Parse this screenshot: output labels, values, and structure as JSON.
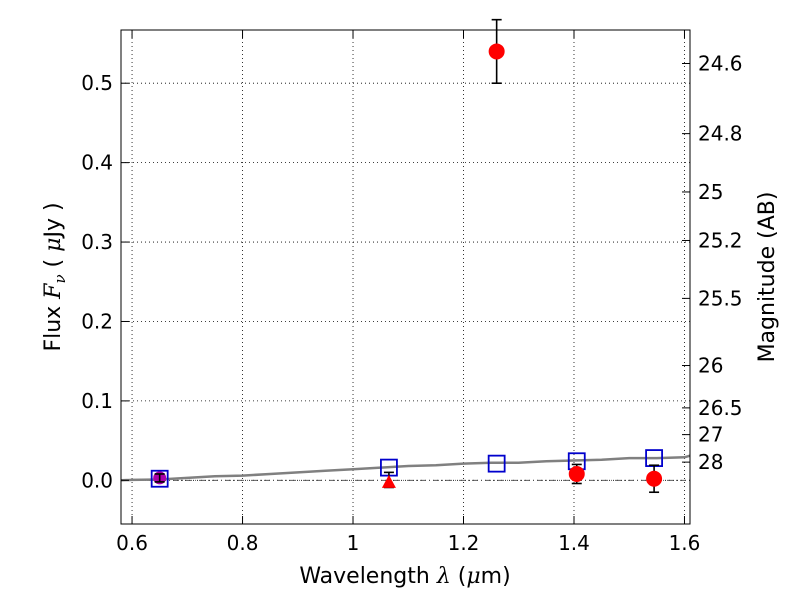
{
  "chart_data": {
    "type": "scatter",
    "title": "",
    "xlabel": {
      "prefix": "Wavelength ",
      "symbol": "λ",
      "unit_open": " (",
      "unit_mu": "μ",
      "unit_rest": "m)"
    },
    "ylabel": {
      "prefix": "Flux  ",
      "symbol": "F",
      "subscript": "ν",
      "unit_open": "  ( ",
      "unit_mu": "μ",
      "unit_rest": "Jy )"
    },
    "y2label": "Magnitude (AB)",
    "xlim": [
      0.58,
      1.61
    ],
    "ylim": [
      -0.055,
      0.567
    ],
    "grid": true,
    "x_ticks": [
      {
        "value": 0.6,
        "label": "0.6"
      },
      {
        "value": 0.8,
        "label": "0.8"
      },
      {
        "value": 1.0,
        "label": "1"
      },
      {
        "value": 1.2,
        "label": "1.2"
      },
      {
        "value": 1.4,
        "label": "1.4"
      },
      {
        "value": 1.6,
        "label": "1.6"
      }
    ],
    "y_ticks": [
      {
        "value": 0.0,
        "label": "0.0"
      },
      {
        "value": 0.1,
        "label": "0.1"
      },
      {
        "value": 0.2,
        "label": "0.2"
      },
      {
        "value": 0.3,
        "label": "0.3"
      },
      {
        "value": 0.4,
        "label": "0.4"
      },
      {
        "value": 0.5,
        "label": "0.5"
      }
    ],
    "mag_ticks": [
      {
        "mag": 24.6,
        "label": "24.6"
      },
      {
        "mag": 24.8,
        "label": "24.8"
      },
      {
        "mag": 25.0,
        "label": "25"
      },
      {
        "mag": 25.2,
        "label": "25.2"
      },
      {
        "mag": 25.5,
        "label": "25.5"
      },
      {
        "mag": 26.0,
        "label": "26"
      },
      {
        "mag": 26.5,
        "label": "26.5"
      },
      {
        "mag": 27.0,
        "label": "27"
      },
      {
        "mag": 28.0,
        "label": "28"
      }
    ],
    "model_sed": {
      "color": "#808080",
      "x": [
        0.58,
        0.6,
        0.65,
        0.7,
        0.75,
        0.8,
        0.85,
        0.9,
        0.95,
        1.0,
        1.05,
        1.1,
        1.15,
        1.2,
        1.25,
        1.3,
        1.35,
        1.4,
        1.45,
        1.5,
        1.55,
        1.6,
        1.61
      ],
      "y": [
        0.0,
        0.0005,
        0.001,
        0.003,
        0.005,
        0.006,
        0.008,
        0.01,
        0.012,
        0.014,
        0.016,
        0.018,
        0.019,
        0.021,
        0.022,
        0.022,
        0.024,
        0.025,
        0.026,
        0.028,
        0.028,
        0.029,
        0.031
      ]
    },
    "model_points": {
      "color": "#0000cc",
      "x": [
        0.65,
        1.065,
        1.26,
        1.405,
        1.545
      ],
      "y": [
        0.002,
        0.016,
        0.021,
        0.024,
        0.028
      ]
    },
    "detections": {
      "color": "#ff0000",
      "x": [
        1.26,
        1.405,
        1.545
      ],
      "y": [
        0.54,
        0.008,
        0.002
      ],
      "err": [
        0.04,
        0.012,
        0.017
      ]
    },
    "upper_limit": {
      "color": "#ff0000",
      "x": [
        1.065
      ],
      "y": [
        -0.002
      ],
      "err_low": [
        0.007
      ],
      "err_high": [
        0.012
      ]
    },
    "magenta_point": {
      "color": "#aa00aa",
      "x": [
        0.65
      ],
      "y": [
        0.003
      ],
      "err": [
        0.005
      ]
    },
    "zero_line": {
      "y": 0.0,
      "color": "#444444"
    }
  }
}
